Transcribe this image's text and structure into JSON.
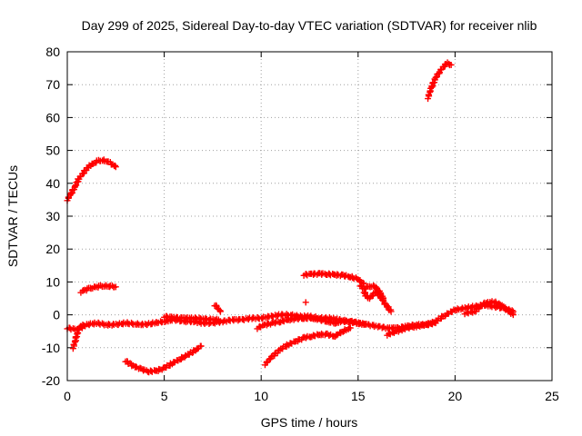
{
  "chart_data": {
    "type": "scatter",
    "title": "Day 299 of 2025, Sidereal Day-to-day VTEC variation (SDTVAR) for receiver nlib",
    "xlabel": "GPS time / hours",
    "ylabel": "SDTVAR / TECUs",
    "xlim": [
      0,
      25
    ],
    "ylim": [
      -20,
      80
    ],
    "xticks": [
      "0",
      "5",
      "10",
      "15",
      "20",
      "25"
    ],
    "yticks": [
      "-20",
      "-10",
      "0",
      "10",
      "20",
      "30",
      "40",
      "50",
      "60",
      "70",
      "80"
    ],
    "grid": true,
    "marker": "+",
    "color": "#ff0000",
    "series": [
      {
        "name": "arc-early-high",
        "x": [
          0,
          0.2,
          0.4,
          0.6,
          0.8,
          1.0,
          1.2,
          1.4,
          1.6,
          1.8,
          2.0,
          2.2,
          2.4,
          2.5
        ],
        "y": [
          35,
          37,
          39,
          41.5,
          43,
          44.5,
          45.5,
          46.3,
          46.8,
          47,
          46.8,
          46.2,
          45.3,
          45
        ]
      },
      {
        "name": "arc-early-mid",
        "x": [
          0.7,
          0.9,
          1.1,
          1.3,
          1.5,
          1.7,
          1.9,
          2.1,
          2.3,
          2.5
        ],
        "y": [
          7,
          7.5,
          8,
          8.3,
          8.5,
          8.7,
          8.8,
          8.7,
          8.6,
          8.5
        ]
      },
      {
        "name": "arc-baseline",
        "x": [
          0,
          0.5,
          1,
          1.5,
          2,
          2.5,
          3,
          3.5,
          4,
          4.5,
          5,
          5.5,
          6,
          6.5,
          7,
          7.5,
          8,
          8.5,
          9,
          9.5,
          10,
          10.5,
          11,
          11.5,
          12,
          12.5,
          13,
          13.5,
          14,
          14.5,
          15,
          15.5,
          16,
          16.5,
          17,
          17.5,
          18,
          18.5,
          19
        ],
        "y": [
          -4,
          -4.5,
          -3,
          -2.5,
          -3,
          -3,
          -2.5,
          -2.8,
          -3,
          -2.5,
          -2,
          -1.5,
          -2,
          -2,
          -2.5,
          -2.5,
          -2,
          -1.5,
          -1.5,
          -1,
          -1,
          -0.5,
          0,
          0,
          -0.5,
          -0.5,
          -1,
          -1,
          -1.5,
          -2,
          -2.5,
          -3,
          -3.5,
          -4,
          -4,
          -3.5,
          -3,
          -3,
          -2.5
        ]
      },
      {
        "name": "arc-dip-early",
        "x": [
          0.3,
          0.4,
          0.5,
          0.6,
          0.8
        ],
        "y": [
          -10,
          -8,
          -6,
          -4,
          -3
        ]
      },
      {
        "name": "arc-trough",
        "x": [
          3.0,
          3.4,
          3.8,
          4.2,
          4.6,
          5.0,
          5.4,
          5.8,
          6.2,
          6.6,
          6.9
        ],
        "y": [
          -14,
          -15.5,
          -16.5,
          -17.2,
          -17,
          -16.2,
          -14.8,
          -13.5,
          -12.2,
          -10.8,
          -9.5
        ]
      },
      {
        "name": "arc-mid-plateau",
        "x": [
          5.0,
          5.5,
          6.0,
          6.5,
          7.0,
          7.5,
          7.8
        ],
        "y": [
          -0.5,
          -0.8,
          -1,
          -1,
          -1.2,
          -1.5,
          -1.5
        ]
      },
      {
        "name": "arc-mid-spike",
        "x": [
          7.6,
          7.7,
          7.8,
          7.9
        ],
        "y": [
          3,
          2.5,
          1.5,
          1
        ]
      },
      {
        "name": "arc-rise-late",
        "x": [
          10.2,
          10.6,
          11.0,
          11.4,
          11.8,
          12.2,
          12.6,
          13.0,
          13.4,
          13.8,
          14.2,
          14.6
        ],
        "y": [
          -15,
          -12.5,
          -10.5,
          -9,
          -8,
          -7,
          -6.5,
          -6,
          -6,
          -6.5,
          -5,
          -4
        ]
      },
      {
        "name": "arc-secondary",
        "x": [
          9.8,
          10.2,
          10.6,
          11.0,
          11.4,
          11.8,
          12.2,
          12.6,
          13.0,
          13.4,
          13.8,
          14.2,
          14.6,
          15.0,
          15.4
        ],
        "y": [
          -4,
          -3,
          -2.5,
          -2,
          -1.5,
          -1.2,
          -1,
          -1,
          -1.5,
          -2,
          -2.5,
          -2,
          -2,
          -2.5,
          -3
        ]
      },
      {
        "name": "arc-plateau-12",
        "x": [
          12.2,
          12.6,
          13.0,
          13.4,
          13.8,
          14.2,
          14.6,
          15.0,
          15.3
        ],
        "y": [
          12.2,
          12.4,
          12.5,
          12.4,
          12.2,
          12,
          11.6,
          10.8,
          9.5
        ]
      },
      {
        "name": "arc-plateau-drop",
        "x": [
          15.3,
          15.5,
          15.7,
          15.9,
          16.1,
          16.3,
          16.5,
          16.7
        ],
        "y": [
          7,
          5,
          5.5,
          7,
          6,
          4,
          2.5,
          1
        ]
      },
      {
        "name": "arc-branch-15",
        "x": [
          15.1,
          15.3,
          15.5,
          15.7,
          15.9,
          16.1,
          16.3
        ],
        "y": [
          9,
          8,
          8.5,
          8.8,
          8.5,
          7,
          5
        ]
      },
      {
        "name": "arc-point-12",
        "x": [
          12.3
        ],
        "y": [
          3.8
        ]
      },
      {
        "name": "arc-recovery",
        "x": [
          16.5,
          17.0,
          17.5,
          18.0,
          18.5,
          19.0,
          19.5,
          20.0,
          20.5,
          21.0,
          21.5,
          22.0,
          22.5,
          23.0
        ],
        "y": [
          -6,
          -5,
          -4,
          -3.5,
          -3,
          -2,
          0,
          1.5,
          2,
          2.5,
          3,
          2.5,
          2,
          1
        ]
      },
      {
        "name": "arc-late-spread",
        "x": [
          20.5,
          21.0,
          21.5,
          22.0,
          22.5,
          23.0
        ],
        "y": [
          0.5,
          1,
          3.5,
          4,
          2.5,
          0
        ]
      },
      {
        "name": "arc-high-late",
        "x": [
          18.6,
          18.8,
          19.0,
          19.2,
          19.4,
          19.6,
          19.8
        ],
        "y": [
          66,
          69.5,
          72,
          74,
          75.5,
          76.5,
          76
        ]
      }
    ]
  }
}
